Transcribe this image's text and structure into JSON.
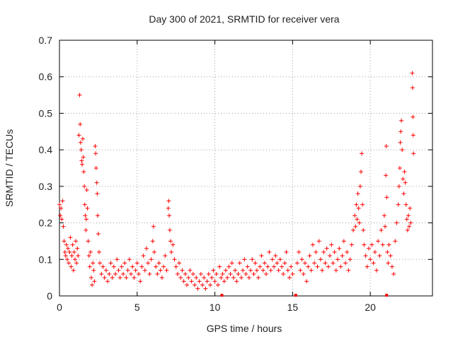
{
  "chart_data": {
    "type": "scatter",
    "title": "Day 300 of 2021, SRMTID for receiver vera",
    "xlabel": "GPS time / hours",
    "ylabel": "SRMTID / TECUs",
    "xlim": [
      0,
      24
    ],
    "ylim": [
      0,
      0.7
    ],
    "xticks": [
      0,
      5,
      10,
      15,
      20
    ],
    "yticks": [
      0,
      0.1,
      0.2,
      0.3,
      0.4,
      0.5,
      0.6,
      0.7
    ],
    "grid": true,
    "marker": "+",
    "color": "#ff0000",
    "series": [
      {
        "name": "SRMTID",
        "points": [
          [
            0.0,
            0.25
          ],
          [
            0.05,
            0.22
          ],
          [
            0.1,
            0.24
          ],
          [
            0.15,
            0.21
          ],
          [
            0.2,
            0.26
          ],
          [
            0.25,
            0.19
          ],
          [
            0.3,
            0.15
          ],
          [
            0.35,
            0.12
          ],
          [
            0.4,
            0.11
          ],
          [
            0.45,
            0.14
          ],
          [
            0.5,
            0.1
          ],
          [
            0.55,
            0.13
          ],
          [
            0.6,
            0.09
          ],
          [
            0.65,
            0.12
          ],
          [
            0.7,
            0.16
          ],
          [
            0.75,
            0.08
          ],
          [
            0.8,
            0.11
          ],
          [
            0.85,
            0.14
          ],
          [
            0.9,
            0.07
          ],
          [
            0.95,
            0.12
          ],
          [
            1.0,
            0.1
          ],
          [
            1.05,
            0.15
          ],
          [
            1.1,
            0.09
          ],
          [
            1.15,
            0.13
          ],
          [
            1.2,
            0.11
          ],
          [
            1.25,
            0.44
          ],
          [
            1.3,
            0.55
          ],
          [
            1.33,
            0.47
          ],
          [
            1.36,
            0.42
          ],
          [
            1.4,
            0.4
          ],
          [
            1.43,
            0.37
          ],
          [
            1.46,
            0.36
          ],
          [
            1.5,
            0.43
          ],
          [
            1.53,
            0.38
          ],
          [
            1.56,
            0.34
          ],
          [
            1.6,
            0.3
          ],
          [
            1.63,
            0.25
          ],
          [
            1.66,
            0.22
          ],
          [
            1.7,
            0.18
          ],
          [
            1.73,
            0.21
          ],
          [
            1.76,
            0.29
          ],
          [
            1.8,
            0.24
          ],
          [
            1.85,
            0.15
          ],
          [
            1.9,
            0.11
          ],
          [
            1.95,
            0.08
          ],
          [
            2.0,
            0.12
          ],
          [
            2.05,
            0.05
          ],
          [
            2.1,
            0.03
          ],
          [
            2.15,
            0.09
          ],
          [
            2.2,
            0.07
          ],
          [
            2.25,
            0.04
          ],
          [
            2.3,
            0.41
          ],
          [
            2.33,
            0.39
          ],
          [
            2.36,
            0.35
          ],
          [
            2.4,
            0.31
          ],
          [
            2.43,
            0.28
          ],
          [
            2.46,
            0.22
          ],
          [
            2.5,
            0.17
          ],
          [
            2.55,
            0.12
          ],
          [
            2.6,
            0.09
          ],
          [
            2.7,
            0.06
          ],
          [
            2.8,
            0.08
          ],
          [
            2.9,
            0.05
          ],
          [
            3.0,
            0.07
          ],
          [
            3.1,
            0.04
          ],
          [
            3.2,
            0.06
          ],
          [
            3.3,
            0.09
          ],
          [
            3.4,
            0.05
          ],
          [
            3.5,
            0.08
          ],
          [
            3.6,
            0.06
          ],
          [
            3.7,
            0.1
          ],
          [
            3.8,
            0.07
          ],
          [
            3.9,
            0.05
          ],
          [
            4.0,
            0.08
          ],
          [
            4.1,
            0.06
          ],
          [
            4.2,
            0.09
          ],
          [
            4.3,
            0.05
          ],
          [
            4.4,
            0.07
          ],
          [
            4.5,
            0.1
          ],
          [
            4.6,
            0.06
          ],
          [
            4.7,
            0.08
          ],
          [
            4.8,
            0.05
          ],
          [
            4.9,
            0.07
          ],
          [
            5.0,
            0.09
          ],
          [
            5.1,
            0.06
          ],
          [
            5.2,
            0.04
          ],
          [
            5.3,
            0.08
          ],
          [
            5.4,
            0.11
          ],
          [
            5.5,
            0.07
          ],
          [
            5.6,
            0.13
          ],
          [
            5.7,
            0.09
          ],
          [
            5.8,
            0.06
          ],
          [
            5.9,
            0.1
          ],
          [
            6.0,
            0.15
          ],
          [
            6.05,
            0.19
          ],
          [
            6.1,
            0.12
          ],
          [
            6.2,
            0.08
          ],
          [
            6.3,
            0.06
          ],
          [
            6.4,
            0.09
          ],
          [
            6.5,
            0.07
          ],
          [
            6.6,
            0.05
          ],
          [
            6.7,
            0.08
          ],
          [
            6.8,
            0.11
          ],
          [
            6.9,
            0.07
          ],
          [
            7.0,
            0.24
          ],
          [
            7.03,
            0.26
          ],
          [
            7.06,
            0.22
          ],
          [
            7.1,
            0.18
          ],
          [
            7.15,
            0.15
          ],
          [
            7.2,
            0.12
          ],
          [
            7.3,
            0.14
          ],
          [
            7.4,
            0.1
          ],
          [
            7.5,
            0.08
          ],
          [
            7.6,
            0.06
          ],
          [
            7.7,
            0.09
          ],
          [
            7.8,
            0.05
          ],
          [
            7.9,
            0.07
          ],
          [
            8.0,
            0.04
          ],
          [
            8.1,
            0.06
          ],
          [
            8.2,
            0.03
          ],
          [
            8.3,
            0.05
          ],
          [
            8.4,
            0.07
          ],
          [
            8.5,
            0.04
          ],
          [
            8.6,
            0.06
          ],
          [
            8.7,
            0.03
          ],
          [
            8.8,
            0.05
          ],
          [
            8.9,
            0.02
          ],
          [
            9.0,
            0.04
          ],
          [
            9.1,
            0.06
          ],
          [
            9.2,
            0.03
          ],
          [
            9.3,
            0.05
          ],
          [
            9.4,
            0.02
          ],
          [
            9.5,
            0.04
          ],
          [
            9.6,
            0.06
          ],
          [
            9.7,
            0.03
          ],
          [
            9.8,
            0.05
          ],
          [
            9.9,
            0.07
          ],
          [
            10.0,
            0.04
          ],
          [
            10.1,
            0.06
          ],
          [
            10.2,
            0.03
          ],
          [
            10.3,
            0.08
          ],
          [
            10.4,
            0.05
          ],
          [
            10.5,
            0.06
          ],
          [
            10.6,
            0.04
          ],
          [
            10.7,
            0.07
          ],
          [
            10.8,
            0.05
          ],
          [
            10.9,
            0.08
          ],
          [
            11.0,
            0.06
          ],
          [
            11.1,
            0.09
          ],
          [
            11.2,
            0.05
          ],
          [
            11.3,
            0.07
          ],
          [
            11.4,
            0.04
          ],
          [
            11.5,
            0.06
          ],
          [
            11.6,
            0.09
          ],
          [
            11.7,
            0.05
          ],
          [
            11.8,
            0.07
          ],
          [
            11.9,
            0.1
          ],
          [
            12.0,
            0.06
          ],
          [
            12.1,
            0.08
          ],
          [
            12.2,
            0.05
          ],
          [
            12.3,
            0.07
          ],
          [
            12.4,
            0.1
          ],
          [
            12.5,
            0.06
          ],
          [
            12.6,
            0.09
          ],
          [
            12.7,
            0.07
          ],
          [
            12.8,
            0.05
          ],
          [
            12.9,
            0.08
          ],
          [
            13.0,
            0.11
          ],
          [
            13.1,
            0.07
          ],
          [
            13.2,
            0.09
          ],
          [
            13.3,
            0.06
          ],
          [
            13.4,
            0.08
          ],
          [
            13.5,
            0.12
          ],
          [
            13.6,
            0.07
          ],
          [
            13.7,
            0.1
          ],
          [
            13.8,
            0.08
          ],
          [
            13.9,
            0.11
          ],
          [
            14.0,
            0.09
          ],
          [
            14.1,
            0.07
          ],
          [
            14.2,
            0.1
          ],
          [
            14.3,
            0.08
          ],
          [
            14.4,
            0.06
          ],
          [
            14.5,
            0.09
          ],
          [
            14.6,
            0.12
          ],
          [
            14.7,
            0.07
          ],
          [
            14.8,
            0.05
          ],
          [
            14.9,
            0.08
          ],
          [
            15.0,
            0.06
          ],
          [
            15.3,
            0.09
          ],
          [
            15.4,
            0.12
          ],
          [
            15.5,
            0.07
          ],
          [
            15.6,
            0.1
          ],
          [
            15.7,
            0.06
          ],
          [
            15.8,
            0.09
          ],
          [
            15.9,
            0.04
          ],
          [
            16.0,
            0.08
          ],
          [
            16.1,
            0.11
          ],
          [
            16.2,
            0.07
          ],
          [
            16.3,
            0.14
          ],
          [
            16.4,
            0.09
          ],
          [
            16.5,
            0.12
          ],
          [
            16.6,
            0.08
          ],
          [
            16.7,
            0.15
          ],
          [
            16.8,
            0.1
          ],
          [
            16.9,
            0.07
          ],
          [
            17.0,
            0.12
          ],
          [
            17.1,
            0.09
          ],
          [
            17.2,
            0.13
          ],
          [
            17.3,
            0.08
          ],
          [
            17.4,
            0.11
          ],
          [
            17.5,
            0.14
          ],
          [
            17.6,
            0.09
          ],
          [
            17.7,
            0.12
          ],
          [
            17.8,
            0.07
          ],
          [
            17.9,
            0.1
          ],
          [
            18.0,
            0.13
          ],
          [
            18.1,
            0.08
          ],
          [
            18.2,
            0.11
          ],
          [
            18.3,
            0.15
          ],
          [
            18.4,
            0.09
          ],
          [
            18.5,
            0.12
          ],
          [
            18.6,
            0.07
          ],
          [
            18.7,
            0.1
          ],
          [
            18.8,
            0.14
          ],
          [
            18.9,
            0.18
          ],
          [
            19.0,
            0.22
          ],
          [
            19.05,
            0.19
          ],
          [
            19.1,
            0.25
          ],
          [
            19.15,
            0.21
          ],
          [
            19.2,
            0.28
          ],
          [
            19.25,
            0.24
          ],
          [
            19.3,
            0.2
          ],
          [
            19.35,
            0.3
          ],
          [
            19.4,
            0.34
          ],
          [
            19.45,
            0.39
          ],
          [
            19.5,
            0.25
          ],
          [
            19.55,
            0.18
          ],
          [
            19.6,
            0.14
          ],
          [
            19.7,
            0.11
          ],
          [
            19.8,
            0.08
          ],
          [
            19.9,
            0.13
          ],
          [
            20.0,
            0.1
          ],
          [
            20.1,
            0.14
          ],
          [
            20.2,
            0.09
          ],
          [
            20.3,
            0.12
          ],
          [
            20.4,
            0.07
          ],
          [
            20.5,
            0.15
          ],
          [
            20.6,
            0.11
          ],
          [
            20.7,
            0.18
          ],
          [
            20.8,
            0.14
          ],
          [
            20.9,
            0.22
          ],
          [
            20.95,
            0.19
          ],
          [
            21.0,
            0.33
          ],
          [
            21.03,
            0.41
          ],
          [
            21.06,
            0.27
          ],
          [
            21.1,
            0.12
          ],
          [
            21.15,
            0.09
          ],
          [
            21.2,
            0.14
          ],
          [
            21.3,
            0.11
          ],
          [
            21.4,
            0.08
          ],
          [
            21.5,
            0.06
          ],
          [
            21.6,
            0.15
          ],
          [
            21.7,
            0.2
          ],
          [
            21.8,
            0.25
          ],
          [
            21.85,
            0.3
          ],
          [
            21.9,
            0.35
          ],
          [
            21.93,
            0.42
          ],
          [
            21.96,
            0.45
          ],
          [
            22.0,
            0.48
          ],
          [
            22.05,
            0.4
          ],
          [
            22.1,
            0.32
          ],
          [
            22.15,
            0.28
          ],
          [
            22.2,
            0.34
          ],
          [
            22.25,
            0.31
          ],
          [
            22.3,
            0.25
          ],
          [
            22.35,
            0.21
          ],
          [
            22.4,
            0.18
          ],
          [
            22.45,
            0.22
          ],
          [
            22.5,
            0.19
          ],
          [
            22.55,
            0.24
          ],
          [
            22.6,
            0.2
          ],
          [
            22.7,
            0.61
          ],
          [
            22.72,
            0.57
          ],
          [
            22.74,
            0.49
          ],
          [
            22.76,
            0.44
          ],
          [
            22.78,
            0.39
          ]
        ]
      }
    ],
    "highlight_markers_x": [
      10.45,
      15.2,
      21.05
    ]
  }
}
